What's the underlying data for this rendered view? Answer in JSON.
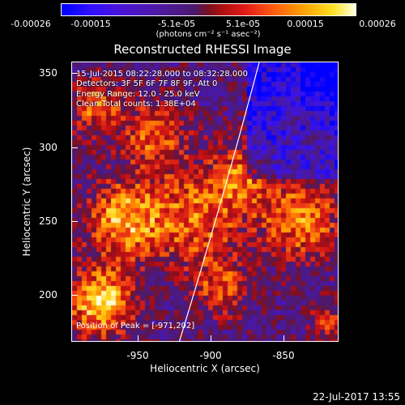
{
  "chart_data": {
    "type": "heatmap",
    "title": "Reconstructed RHESSI Image",
    "xlabel": "Heliocentric X (arcsec)",
    "ylabel": "Heliocentric Y (arcsec)",
    "xlim": [
      -985,
      -835
    ],
    "ylim": [
      168,
      365
    ],
    "xticks": [
      "-950",
      "-900",
      "-850"
    ],
    "yticks": [
      "350",
      "300",
      "250",
      "200"
    ],
    "colorbar": {
      "ticks": [
        "-0.00026",
        "-0.00015",
        "-5.1e-05",
        "5.1e-05",
        "0.00015",
        "0.00026"
      ],
      "unit_label": "(photons cm⁻² s⁻¹ asec⁻²)",
      "range": [
        -0.00026,
        0.00026
      ]
    },
    "annotations": [
      "15-Jul-2015 08:22:28.000 to 08:32:28.000",
      "Detectors: 3F 5F 6F 7F 8F 9F, Att 0",
      "Energy Range: 12.0 - 25.0 keV",
      "Clean     Total counts: 1.38E+04"
    ],
    "peak_label": "Position of Peak = [-971,202]",
    "limb_curve": [
      [
        -925,
        168
      ],
      [
        -900,
        270
      ],
      [
        -880,
        365
      ]
    ]
  },
  "footer": {
    "timestamp": "22-Jul-2017 13:55"
  }
}
